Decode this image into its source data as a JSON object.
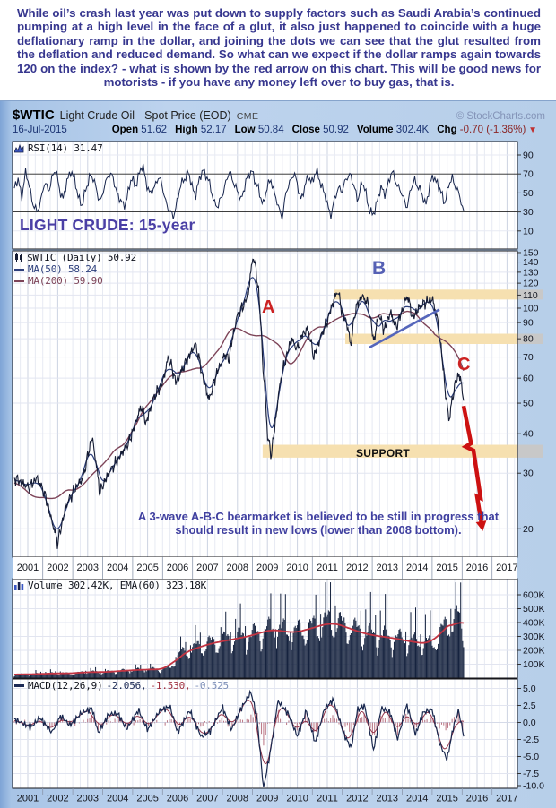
{
  "commentary": "While oil’s crash last year was put down to supply factors such as Saudi Arabia’s continued pumping at a high level in the face of a glut, it also just happened to coincide with a huge deflationary ramp in the dollar, and joining the dots we can see that the glut resulted from the deflation and reduced demand. So what can we expect if the dollar ramps again towards 120 on the index? - what is shown by the red arrow on this chart. This will be good news for motorists - if you have any money left over to buy gas, that is.",
  "header": {
    "symbol": "$WTIC",
    "title": "Light Crude Oil - Spot Price (EOD)",
    "exchange": "CME",
    "copyright": "© StockCharts.com",
    "date": "16-Jul-2015",
    "ohlc": [
      {
        "label": "Open",
        "value": "51.62"
      },
      {
        "label": "High",
        "value": "52.17"
      },
      {
        "label": "Low",
        "value": "50.84"
      },
      {
        "label": "Close",
        "value": "50.92"
      },
      {
        "label": "Volume",
        "value": "302.4K"
      },
      {
        "label": "Chg",
        "value": "-0.70 (-1.36%)",
        "negative": true
      }
    ]
  },
  "rsi": {
    "legend": "RSI(14) 31.47",
    "caption": "LIGHT CRUDE: 15-year",
    "ticks": [
      90,
      70,
      50,
      30,
      10
    ],
    "overbought": 70,
    "midline": 50,
    "oversold": 30
  },
  "main": {
    "legend_price": "$WTIC (Daily) 50.92",
    "legend_ma50": "MA(50) 58.24",
    "legend_ma200": "MA(200) 59.90",
    "price_ticks": [
      150,
      140,
      130,
      120,
      110,
      100,
      90,
      80,
      70,
      60,
      50,
      40,
      30,
      20
    ],
    "labels": {
      "a": "A",
      "b": "B",
      "c": "C",
      "support": "SUPPORT"
    },
    "annotation": "A 3-wave A-B-C bearmarket is believed to be still in progress that should result in new lows (lower than 2008 bottom)."
  },
  "volume": {
    "legend": "Volume 302.42K, EMA(60) 323.18K",
    "ticks": [
      "600K",
      "500K",
      "400K",
      "300K",
      "200K",
      "100K"
    ]
  },
  "macd": {
    "legend_name": "MACD(12,26,9)",
    "v1": "-2.056,",
    "v2": "-1.530,",
    "v3": "-0.525",
    "ticks": [
      "5.0",
      "2.5",
      "0.0",
      "-2.5",
      "-5.0",
      "-7.5",
      "-10.0"
    ]
  },
  "x_years": [
    2001,
    2002,
    2003,
    2004,
    2005,
    2006,
    2007,
    2008,
    2009,
    2010,
    2011,
    2012,
    2013,
    2014,
    2015,
    2016,
    2017
  ],
  "colors": {
    "navy_series": "#141b33",
    "ma50": "#2c3e7b",
    "ma200": "#7d4458",
    "ema_red": "#c23442",
    "arrow_red": "#cc1111",
    "trendline_blue": "#5566bb",
    "band_beige": "#f6e0b0",
    "band_gray": "#c8c8c8",
    "label_red": "#cc2222",
    "label_blue": "#5560b5",
    "annotation_purple": "#4040a0"
  },
  "chart_data": [
    {
      "type": "line",
      "title": "RSI(14)",
      "current": 31.47,
      "x_start": 2000.55,
      "x_end": 2015.55,
      "ylim": [
        0,
        100
      ],
      "values": [
        55,
        63,
        48,
        70,
        58,
        38,
        28,
        44,
        60,
        52,
        67,
        73,
        55,
        42,
        64,
        75,
        61,
        47,
        36,
        54,
        70,
        63,
        50,
        41,
        58,
        72,
        66,
        53,
        44,
        33,
        50,
        65,
        57,
        70,
        78,
        62,
        47,
        55,
        68,
        59,
        44,
        31,
        24,
        40,
        56,
        66,
        72,
        57,
        49,
        62,
        76,
        67,
        54,
        41,
        34,
        48,
        61,
        71,
        64,
        51,
        43,
        58,
        67,
        75,
        59,
        49,
        39,
        55,
        66,
        47,
        34,
        26,
        49,
        63,
        71,
        57,
        44,
        56,
        69,
        61,
        73,
        64,
        49,
        37,
        27,
        45,
        58,
        51,
        67,
        71,
        54,
        44,
        61,
        52,
        34,
        24,
        41,
        56,
        47,
        61,
        71,
        64,
        54,
        44,
        37,
        52,
        65,
        57,
        47,
        39,
        56,
        69,
        61,
        49,
        41,
        56,
        66,
        57,
        44,
        31.47
      ]
    },
    {
      "type": "line",
      "title": "$WTIC Light Crude Oil spot (daily close, log scale)",
      "ylim": [
        16,
        152
      ],
      "yscale": "log",
      "close_anchors": [
        [
          2000.55,
          29
        ],
        [
          2001.05,
          27
        ],
        [
          2001.3,
          29
        ],
        [
          2001.55,
          26
        ],
        [
          2001.75,
          22
        ],
        [
          2002.0,
          18
        ],
        [
          2002.3,
          24
        ],
        [
          2002.6,
          27
        ],
        [
          2002.85,
          29
        ],
        [
          2003.15,
          39
        ],
        [
          2003.4,
          26
        ],
        [
          2003.7,
          30
        ],
        [
          2004.0,
          33
        ],
        [
          2004.4,
          38
        ],
        [
          2004.8,
          49
        ],
        [
          2004.95,
          43
        ],
        [
          2005.2,
          52
        ],
        [
          2005.5,
          58
        ],
        [
          2005.7,
          70
        ],
        [
          2005.95,
          58
        ],
        [
          2006.3,
          68
        ],
        [
          2006.6,
          77
        ],
        [
          2006.85,
          60
        ],
        [
          2007.05,
          51
        ],
        [
          2007.3,
          62
        ],
        [
          2007.6,
          72
        ],
        [
          2007.7,
          68
        ],
        [
          2008.0,
          95
        ],
        [
          2008.2,
          102
        ],
        [
          2008.35,
          110
        ],
        [
          2008.53,
          147
        ],
        [
          2008.7,
          115
        ],
        [
          2008.85,
          65
        ],
        [
          2009.0,
          40
        ],
        [
          2009.12,
          34
        ],
        [
          2009.25,
          42
        ],
        [
          2009.45,
          60
        ],
        [
          2009.65,
          71
        ],
        [
          2009.8,
          80
        ],
        [
          2010.0,
          74
        ],
        [
          2010.15,
          82
        ],
        [
          2010.35,
          86
        ],
        [
          2010.55,
          70
        ],
        [
          2010.8,
          82
        ],
        [
          2011.0,
          91
        ],
        [
          2011.2,
          105
        ],
        [
          2011.35,
          114
        ],
        [
          2011.5,
          96
        ],
        [
          2011.65,
          90
        ],
        [
          2011.78,
          76
        ],
        [
          2011.95,
          100
        ],
        [
          2012.15,
          109
        ],
        [
          2012.35,
          104
        ],
        [
          2012.55,
          78
        ],
        [
          2012.72,
          96
        ],
        [
          2012.9,
          85
        ],
        [
          2013.1,
          97
        ],
        [
          2013.3,
          87
        ],
        [
          2013.5,
          98
        ],
        [
          2013.67,
          110
        ],
        [
          2013.85,
          93
        ],
        [
          2014.05,
          100
        ],
        [
          2014.25,
          104
        ],
        [
          2014.5,
          107
        ],
        [
          2014.65,
          95
        ],
        [
          2014.8,
          74
        ],
        [
          2014.95,
          53
        ],
        [
          2015.07,
          44
        ],
        [
          2015.18,
          52
        ],
        [
          2015.28,
          58
        ],
        [
          2015.4,
          62
        ],
        [
          2015.48,
          57
        ],
        [
          2015.55,
          50.92
        ]
      ],
      "ma50_current": 58.24,
      "ma200_current": 59.9,
      "annotations": {
        "bands": [
          [
            106.5,
            114.5,
            2011.24
          ],
          [
            77.0,
            83.0,
            2011.6
          ],
          [
            33.6,
            36.9,
            2008.84
          ]
        ],
        "support_band_label": "SUPPORT",
        "trendline": [
          [
            2012.4,
            75
          ],
          [
            2014.74,
            99
          ]
        ],
        "arrow": [
          [
            2015.55,
            49
          ],
          [
            2015.8,
            37.3
          ],
          [
            2015.62,
            36.4
          ],
          [
            2015.88,
            35.4
          ],
          [
            2016.12,
            25
          ],
          [
            2016.0,
            25.3
          ],
          [
            2016.15,
            20.7
          ]
        ],
        "wave_labels": [
          [
            "A",
            2009.11,
            98
          ],
          [
            "B",
            2012.88,
            131
          ],
          [
            "C",
            2015.73,
            64
          ]
        ]
      }
    },
    {
      "type": "bar",
      "title": "Volume (thousands of contracts)",
      "current_k": 302.42,
      "ema60_k": 323.18,
      "anchors": [
        [
          2000.55,
          25
        ],
        [
          2001.5,
          30
        ],
        [
          2002.0,
          35
        ],
        [
          2002.5,
          32
        ],
        [
          2003.0,
          45
        ],
        [
          2003.5,
          40
        ],
        [
          2004.0,
          50
        ],
        [
          2004.5,
          55
        ],
        [
          2005.0,
          62
        ],
        [
          2005.5,
          60
        ],
        [
          2005.75,
          70
        ],
        [
          2005.9,
          120
        ],
        [
          2006.1,
          170
        ],
        [
          2006.5,
          200
        ],
        [
          2007.0,
          240
        ],
        [
          2007.5,
          260
        ],
        [
          2008.0,
          280
        ],
        [
          2008.5,
          300
        ],
        [
          2008.9,
          330
        ],
        [
          2009.3,
          350
        ],
        [
          2009.8,
          310
        ],
        [
          2010.2,
          340
        ],
        [
          2010.7,
          360
        ],
        [
          2011.1,
          400
        ],
        [
          2011.5,
          370
        ],
        [
          2012.0,
          330
        ],
        [
          2012.5,
          300
        ],
        [
          2013.0,
          290
        ],
        [
          2013.5,
          270
        ],
        [
          2014.0,
          250
        ],
        [
          2014.5,
          240
        ],
        [
          2014.85,
          330
        ],
        [
          2015.1,
          400
        ],
        [
          2015.35,
          430
        ],
        [
          2015.55,
          302
        ]
      ]
    },
    {
      "type": "line",
      "title": "MACD(12,26,9)",
      "current": [
        -2.056,
        -1.53,
        -0.525
      ],
      "anchors": [
        [
          2000.55,
          0.5
        ],
        [
          2001.1,
          -0.8
        ],
        [
          2001.4,
          0.6
        ],
        [
          2001.8,
          -1.6
        ],
        [
          2002.1,
          0.8
        ],
        [
          2002.4,
          -0.6
        ],
        [
          2002.8,
          1.2
        ],
        [
          2003.15,
          1.8
        ],
        [
          2003.35,
          -1.8
        ],
        [
          2003.7,
          0.9
        ],
        [
          2004.0,
          1.1
        ],
        [
          2004.3,
          -1.2
        ],
        [
          2004.7,
          1.6
        ],
        [
          2005.0,
          -1.3
        ],
        [
          2005.4,
          1.5
        ],
        [
          2005.75,
          2.2
        ],
        [
          2006.0,
          -1.6
        ],
        [
          2006.4,
          1.7
        ],
        [
          2006.8,
          -2.2
        ],
        [
          2007.1,
          -1.2
        ],
        [
          2007.5,
          2.3
        ],
        [
          2007.8,
          -1.0
        ],
        [
          2008.1,
          2.0
        ],
        [
          2008.45,
          4.6
        ],
        [
          2008.65,
          1.0
        ],
        [
          2008.87,
          -9.5
        ],
        [
          2009.1,
          -4.0
        ],
        [
          2009.35,
          3.4
        ],
        [
          2009.7,
          1.5
        ],
        [
          2010.0,
          -1.8
        ],
        [
          2010.3,
          2.0
        ],
        [
          2010.6,
          -2.8
        ],
        [
          2010.9,
          2.2
        ],
        [
          2011.2,
          3.6
        ],
        [
          2011.55,
          -1.5
        ],
        [
          2011.8,
          -3.6
        ],
        [
          2012.0,
          2.0
        ],
        [
          2012.25,
          2.6
        ],
        [
          2012.55,
          -4.0
        ],
        [
          2012.8,
          2.2
        ],
        [
          2013.1,
          1.5
        ],
        [
          2013.35,
          -2.4
        ],
        [
          2013.65,
          2.6
        ],
        [
          2013.95,
          -1.8
        ],
        [
          2014.2,
          1.4
        ],
        [
          2014.5,
          1.8
        ],
        [
          2014.75,
          -3.2
        ],
        [
          2015.0,
          -5.6
        ],
        [
          2015.2,
          -1.0
        ],
        [
          2015.38,
          1.6
        ],
        [
          2015.55,
          -2.056
        ]
      ]
    }
  ]
}
